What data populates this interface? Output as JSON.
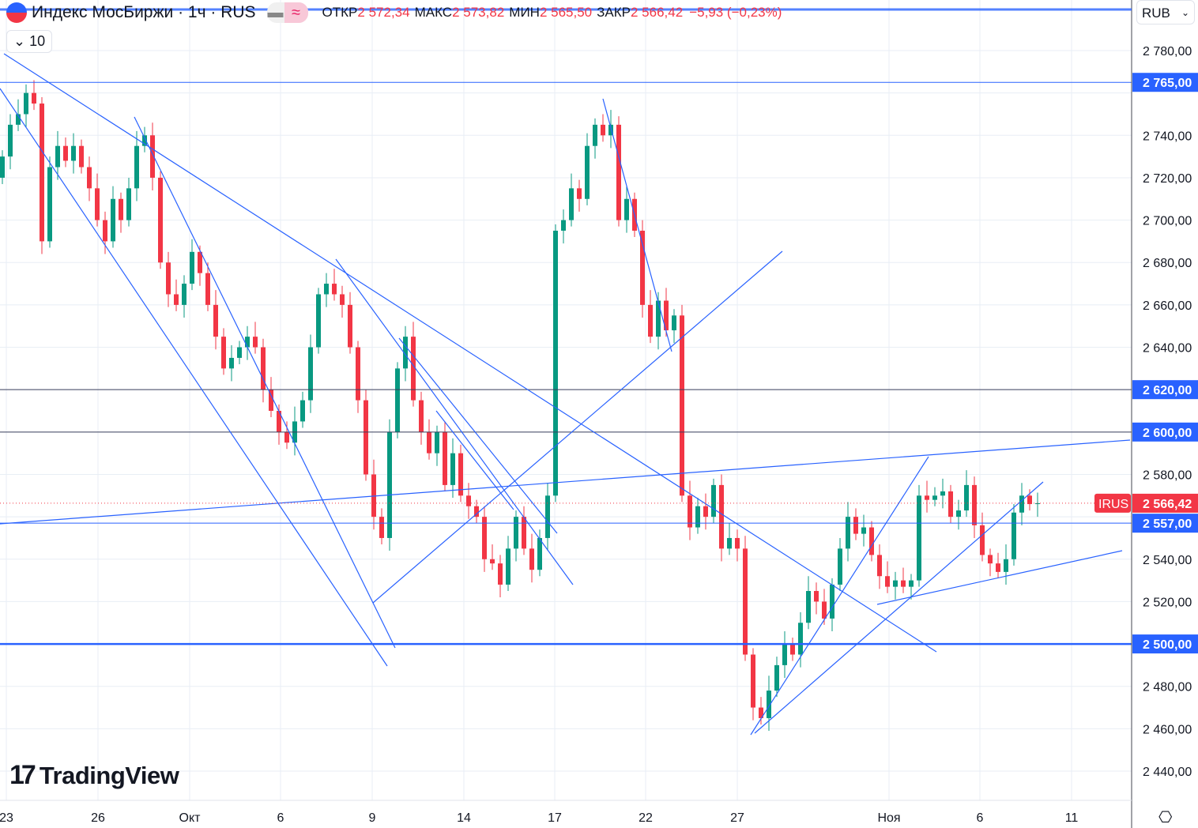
{
  "header": {
    "symbol_title": "Индекс МосБиржи · 1ч · RUS",
    "open_label": "ОТКР",
    "open": "2 572,34",
    "high_label": "МАКС",
    "high": "2 573,82",
    "low_label": "МИН",
    "low": "2 565,50",
    "close_label": "ЗАКР",
    "close": "2 566,42",
    "change": "−5,93 (−0,23%)",
    "indicator_count": "10",
    "currency": "RUB"
  },
  "logo_text": "TradingView",
  "colors": {
    "up": "#089981",
    "down": "#f23645",
    "line": "#2962ff",
    "grid": "#e8eef5"
  },
  "chart_data": {
    "type": "candlestick",
    "title": "Индекс МосБиржи · 1ч",
    "ylim": [
      2430,
      2794
    ],
    "y_ticks": [
      "2 780,00",
      "2 740,00",
      "2 720,00",
      "2 700,00",
      "2 680,00",
      "2 660,00",
      "2 640,00",
      "2 580,00",
      "2 540,00",
      "2 520,00",
      "2 480,00",
      "2 460,00",
      "2 440,00"
    ],
    "y_tick_values": [
      2780,
      2740,
      2720,
      2700,
      2680,
      2660,
      2640,
      2580,
      2540,
      2520,
      2480,
      2460,
      2440
    ],
    "x_ticks": [
      "23",
      "26",
      "Окт",
      "6",
      "9",
      "14",
      "17",
      "22",
      "27",
      "Ноя",
      "6",
      "11"
    ],
    "first_open": 2720,
    "close": [
      2730,
      2745,
      2750,
      2760,
      2755,
      2690,
      2725,
      2735,
      2728,
      2735,
      2725,
      2715,
      2700,
      2690,
      2710,
      2700,
      2715,
      2735,
      2740,
      2720,
      2680,
      2665,
      2660,
      2670,
      2685,
      2675,
      2660,
      2645,
      2630,
      2635,
      2640,
      2645,
      2640,
      2620,
      2610,
      2600,
      2595,
      2605,
      2615,
      2640,
      2665,
      2670,
      2665,
      2660,
      2640,
      2615,
      2580,
      2560,
      2550,
      2600,
      2630,
      2645,
      2615,
      2600,
      2590,
      2600,
      2575,
      2590,
      2570,
      2565,
      2560,
      2540,
      2538,
      2528,
      2545,
      2560,
      2545,
      2535,
      2550,
      2570,
      2695,
      2700,
      2715,
      2710,
      2735,
      2745,
      2740,
      2745,
      2700,
      2710,
      2695,
      2660,
      2645,
      2662,
      2648,
      2655,
      2570,
      2555,
      2565,
      2560,
      2575,
      2545,
      2550,
      2545,
      2495,
      2470,
      2465,
      2478,
      2490,
      2500,
      2495,
      2510,
      2525,
      2520,
      2512,
      2528,
      2545,
      2560,
      2552,
      2555,
      2542,
      2532,
      2527,
      2530,
      2527,
      2530,
      2570,
      2568,
      2570,
      2572,
      2560,
      2563,
      2575,
      2556,
      2542,
      2538,
      2534,
      2540,
      2562,
      2570,
      2566,
      2566.42
    ],
    "horizontal_levels": [
      {
        "value": 2765,
        "label": "2 765,00"
      },
      {
        "value": 2620,
        "label": "2 620,00"
      },
      {
        "value": 2600,
        "label": "2 600,00"
      },
      {
        "value": 2557,
        "label": "2 557,00"
      },
      {
        "value": 2500,
        "label": "2 500,00"
      }
    ],
    "last_price": {
      "value": 2566.42,
      "label": "2 566,42",
      "ticker": "IRUS"
    }
  }
}
